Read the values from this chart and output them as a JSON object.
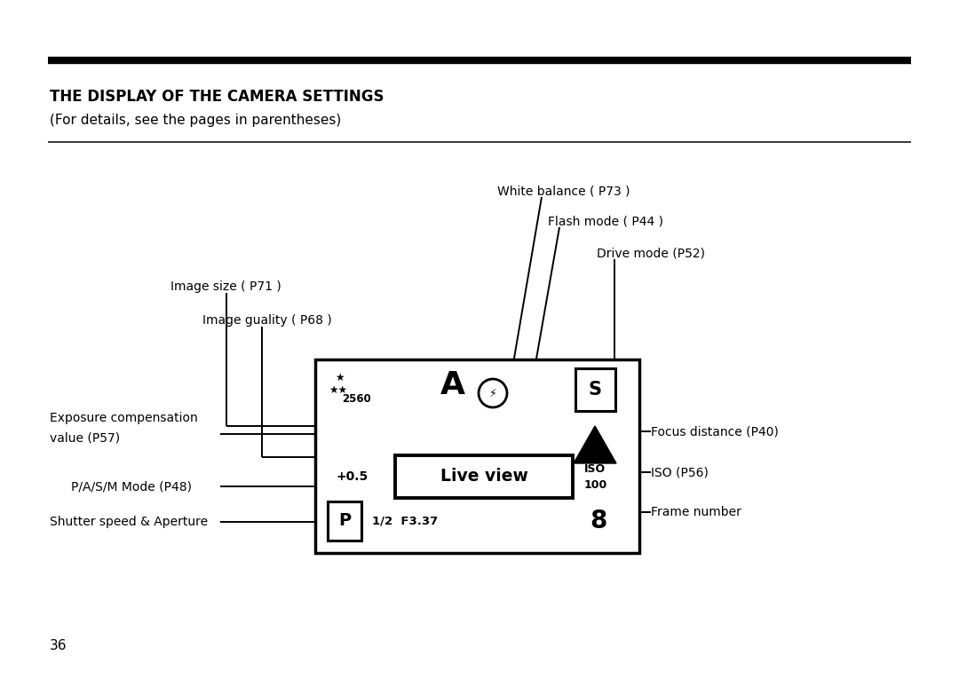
{
  "bg_color": "#ffffff",
  "title": "THE DISPLAY OF THE CAMERA SETTINGS",
  "subtitle": "(For details, see the pages in parentheses)",
  "page_number": "36",
  "figw": 10.8,
  "figh": 7.65,
  "dpi": 100
}
